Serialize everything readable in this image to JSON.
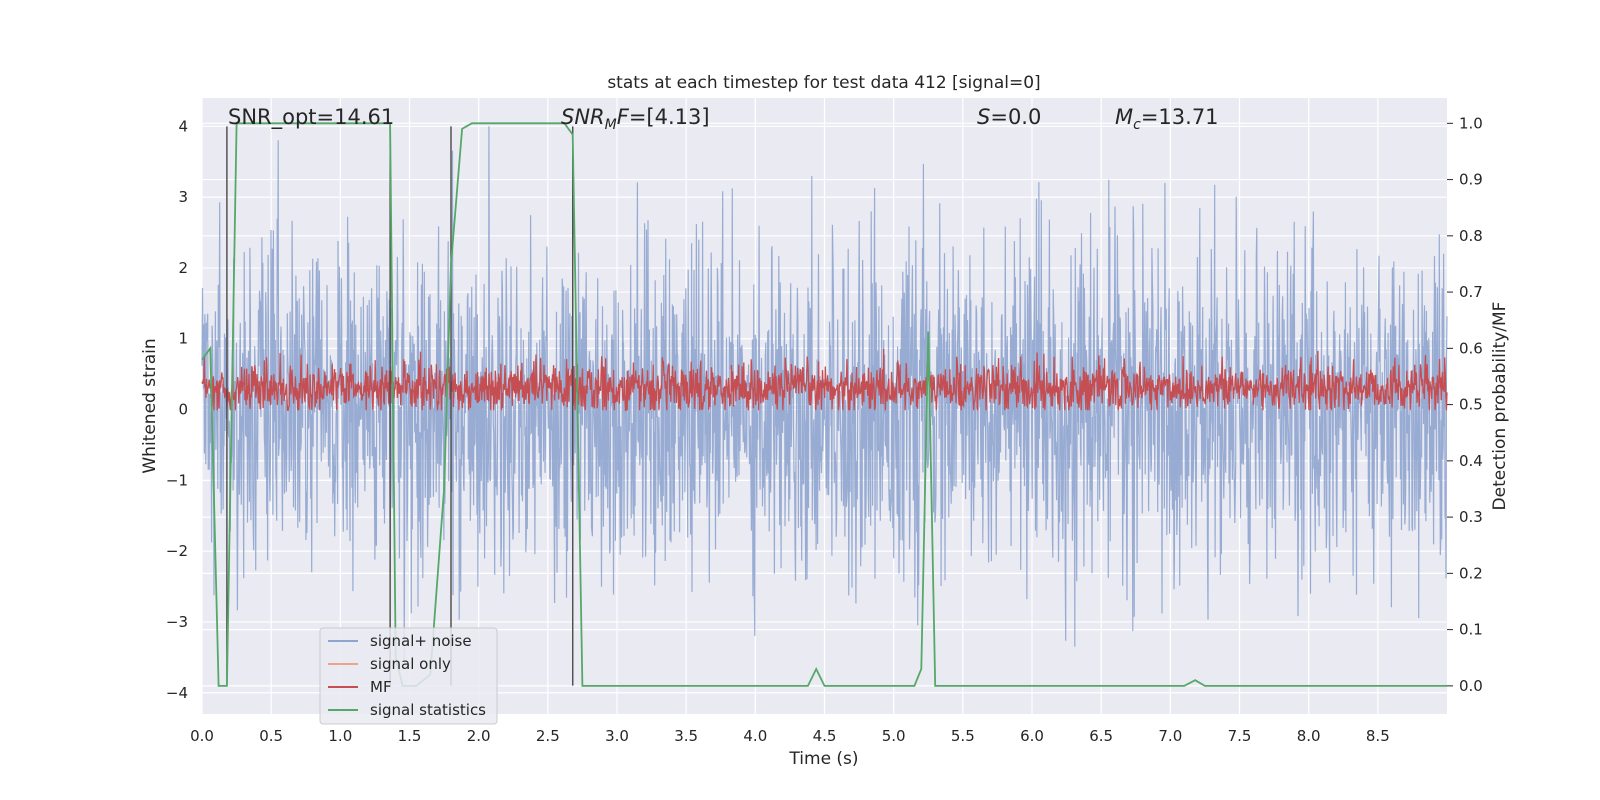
{
  "chart_data": {
    "type": "line",
    "title": "stats at each timestep for test data 412 [signal=0]",
    "xlabel": "Time (s)",
    "ylabel_left": "Whitened strain",
    "ylabel_right": "Detection probability/MF",
    "xlim": [
      0.0,
      9.0
    ],
    "ylim_left": [
      -4.3,
      4.4
    ],
    "ylim_right": [
      -0.05,
      1.045
    ],
    "x_ticks": [
      "0.0",
      "0.5",
      "1.0",
      "1.5",
      "2.0",
      "2.5",
      "3.0",
      "3.5",
      "4.0",
      "4.5",
      "5.0",
      "5.5",
      "6.0",
      "6.5",
      "7.0",
      "7.5",
      "8.0",
      "8.5"
    ],
    "y_left_ticks": [
      "4",
      "3",
      "2",
      "1",
      "0",
      "−1",
      "−2",
      "−3",
      "−4"
    ],
    "y_right_ticks": [
      "1.0",
      "0.9",
      "0.8",
      "0.7",
      "0.6",
      "0.5",
      "0.4",
      "0.3",
      "0.2",
      "0.1",
      "0.0"
    ],
    "grid": true,
    "legend_position": "lower-left",
    "annotations": {
      "snr_opt": "SNR_opt=14.61",
      "snr_mf": "SNR_MF=[4.13]",
      "s_value": "S=0.0",
      "mc_value": "M_c=13.71"
    },
    "series": [
      {
        "name": "signal+ noise",
        "color": "#8fa5cf",
        "axis": "left",
        "description_values": {
          "t_start": 0.0,
          "t_end": 9.0,
          "approx_amplitude_range": [
            -3.9,
            4.0
          ]
        }
      },
      {
        "name": "signal only",
        "color": "#eaa58b",
        "axis": "left",
        "values": []
      },
      {
        "name": "MF",
        "color": "#c44e52",
        "axis": "right",
        "description_values": {
          "approx_mean": 0.53,
          "approx_range": [
            0.49,
            0.62
          ]
        }
      },
      {
        "name": "signal statistics",
        "color": "#55a868",
        "axis": "right",
        "x": [
          0.0,
          0.06,
          0.12,
          0.18,
          0.25,
          0.35,
          1.36,
          1.4,
          1.45,
          1.55,
          1.65,
          1.75,
          1.8,
          1.88,
          1.95,
          2.62,
          2.68,
          2.75,
          3.2,
          4.38,
          4.44,
          4.5,
          5.0,
          5.15,
          5.2,
          5.25,
          5.3,
          5.4,
          6.5,
          7.1,
          7.18,
          7.25,
          8.0,
          9.0
        ],
        "values": [
          0.58,
          0.6,
          0.0,
          0.0,
          1.0,
          1.0,
          1.0,
          0.05,
          0.0,
          0.0,
          0.02,
          0.35,
          0.75,
          0.99,
          1.0,
          1.0,
          0.98,
          0.0,
          0.0,
          0.0,
          0.03,
          0.0,
          0.0,
          0.0,
          0.03,
          0.63,
          0.0,
          0.0,
          0.0,
          0.0,
          0.01,
          0.0,
          0.0,
          0.0
        ]
      }
    ],
    "vertical_markers_x": [
      0.18,
      1.36,
      1.8,
      2.68
    ],
    "colors": {
      "plot_bg": "#eaeaf2",
      "grid": "#ffffff",
      "noise": "#8fa5cf",
      "signal_only": "#eaa58b",
      "mf": "#c44e52",
      "stats": "#55a868",
      "marker": "#4a4a4a"
    }
  }
}
